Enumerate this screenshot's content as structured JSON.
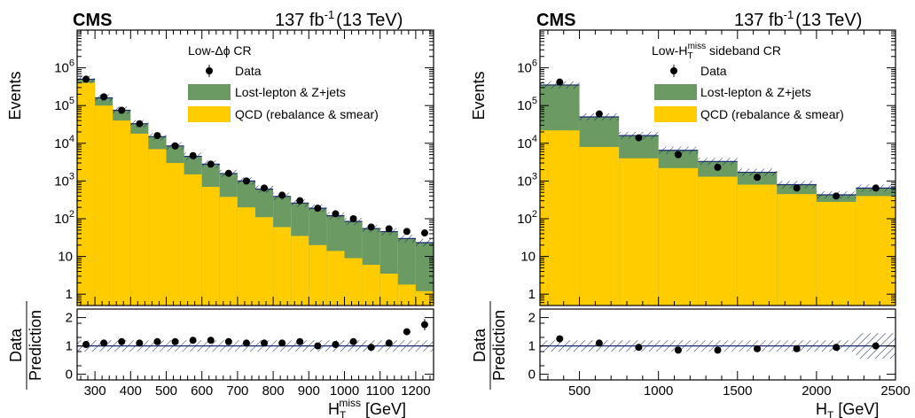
{
  "figure": {
    "experiment": "CMS",
    "lumi": "137 fb",
    "lumi_exp": "-1",
    "energy": "(13 TeV)"
  },
  "legend": {
    "data": "Data",
    "lostlep": "Lost-lepton & Z+jets",
    "qcd": "QCD (rebalance & smear)"
  },
  "colors": {
    "lostlep": "#6b9a62",
    "qcd": "#ffcc00",
    "data": "#000000",
    "hatch": "#1a2a6e"
  },
  "ratio_axis_label_top": "Data",
  "ratio_axis_label_bottom": "Prediction",
  "chart_data": [
    {
      "type": "bar",
      "panel": "left",
      "region_label": "Low-Δϕ CR",
      "xlabel": "H",
      "xlabel_sub": "T",
      "xlabel_sup": "miss",
      "xlabel_unit": " [GeV]",
      "ylabel": "Events",
      "xlim": [
        250,
        1250
      ],
      "ylim": [
        0.5,
        10000000
      ],
      "log_y": true,
      "x_ticks": [
        300,
        400,
        500,
        600,
        700,
        800,
        900,
        1000,
        1100,
        1200
      ],
      "x_tick_labels": [
        "300",
        "400",
        "500",
        "600",
        "700",
        "800",
        "900",
        "1000",
        "1100",
        "1200"
      ],
      "y_ticks": [
        1,
        10,
        100,
        1000,
        10000,
        100000,
        1000000
      ],
      "y_tick_labels": [
        {
          "base": "1",
          "exp": ""
        },
        {
          "base": "10",
          "exp": ""
        },
        {
          "base": "10",
          "exp": "2"
        },
        {
          "base": "10",
          "exp": "3"
        },
        {
          "base": "10",
          "exp": "4"
        },
        {
          "base": "10",
          "exp": "5"
        },
        {
          "base": "10",
          "exp": "6"
        }
      ],
      "bin_edges": [
        250,
        300,
        350,
        400,
        450,
        500,
        550,
        600,
        650,
        700,
        750,
        800,
        850,
        900,
        950,
        1000,
        1050,
        1100,
        1150,
        1200,
        1250
      ],
      "series": [
        {
          "name": "QCD (rebalance & smear)",
          "values": [
            400000,
            100000,
            40000,
            18000,
            7000,
            3000,
            1500,
            700,
            380,
            200,
            110,
            60,
            35,
            20,
            14,
            9,
            6,
            3.5,
            1.8,
            1.2
          ]
        },
        {
          "name": "Lost-lepton & Z+jets",
          "values": [
            100000,
            60000,
            35000,
            15000,
            8000,
            5500,
            3000,
            2100,
            1200,
            800,
            500,
            330,
            225,
            170,
            106,
            76,
            49,
            42,
            28,
            22
          ]
        },
        {
          "name": "Data",
          "values": [
            500000,
            170000,
            75000,
            33000,
            16000,
            8500,
            4700,
            2800,
            1600,
            1000,
            650,
            420,
            300,
            190,
            135,
            100,
            60,
            54,
            46,
            42
          ]
        }
      ],
      "ratio": {
        "ylim": [
          -0.2,
          2.3
        ],
        "y_ticks": [
          0,
          1,
          2
        ],
        "values": [
          1.05,
          1.1,
          1.15,
          1.1,
          1.15,
          1.15,
          1.2,
          1.2,
          1.15,
          1.1,
          1.1,
          1.1,
          1.15,
          1.0,
          1.05,
          1.15,
          0.95,
          1.1,
          1.5,
          1.75
        ]
      }
    },
    {
      "type": "bar",
      "panel": "right",
      "region_label": "Low-H",
      "region_label_sub": "T",
      "region_label_sup": "miss",
      "region_label_rest": " sideband CR",
      "xlabel": "H",
      "xlabel_sub": "T",
      "xlabel_sup": "",
      "xlabel_unit": " [GeV]",
      "ylabel": "Events",
      "xlim": [
        250,
        2500
      ],
      "ylim": [
        0.5,
        10000000
      ],
      "log_y": true,
      "x_ticks": [
        500,
        1000,
        1500,
        2000,
        2500
      ],
      "x_tick_labels": [
        "500",
        "1000",
        "1500",
        "2000",
        "2500"
      ],
      "y_ticks": [
        1,
        10,
        100,
        1000,
        10000,
        100000,
        1000000
      ],
      "y_tick_labels": [
        {
          "base": "1",
          "exp": ""
        },
        {
          "base": "10",
          "exp": ""
        },
        {
          "base": "10",
          "exp": "2"
        },
        {
          "base": "10",
          "exp": "3"
        },
        {
          "base": "10",
          "exp": "4"
        },
        {
          "base": "10",
          "exp": "5"
        },
        {
          "base": "10",
          "exp": "6"
        }
      ],
      "bin_edges": [
        250,
        500,
        750,
        1000,
        1250,
        1500,
        1750,
        2000,
        2250,
        2500
      ],
      "series": [
        {
          "name": "QCD (rebalance & smear)",
          "values": [
            22000,
            8000,
            4000,
            2200,
            1300,
            800,
            450,
            280,
            400
          ]
        },
        {
          "name": "Lost-lepton & Z+jets",
          "values": [
            330000,
            42000,
            12000,
            4300,
            2000,
            900,
            350,
            150,
            250
          ]
        },
        {
          "name": "Data",
          "values": [
            420000,
            60000,
            14000,
            5000,
            2300,
            1250,
            650,
            400,
            650
          ]
        }
      ],
      "ratio": {
        "ylim": [
          -0.2,
          2.3
        ],
        "y_ticks": [
          0,
          1,
          2
        ],
        "values": [
          1.25,
          1.1,
          0.95,
          0.85,
          0.85,
          0.9,
          0.9,
          0.95,
          1.0
        ]
      }
    }
  ]
}
